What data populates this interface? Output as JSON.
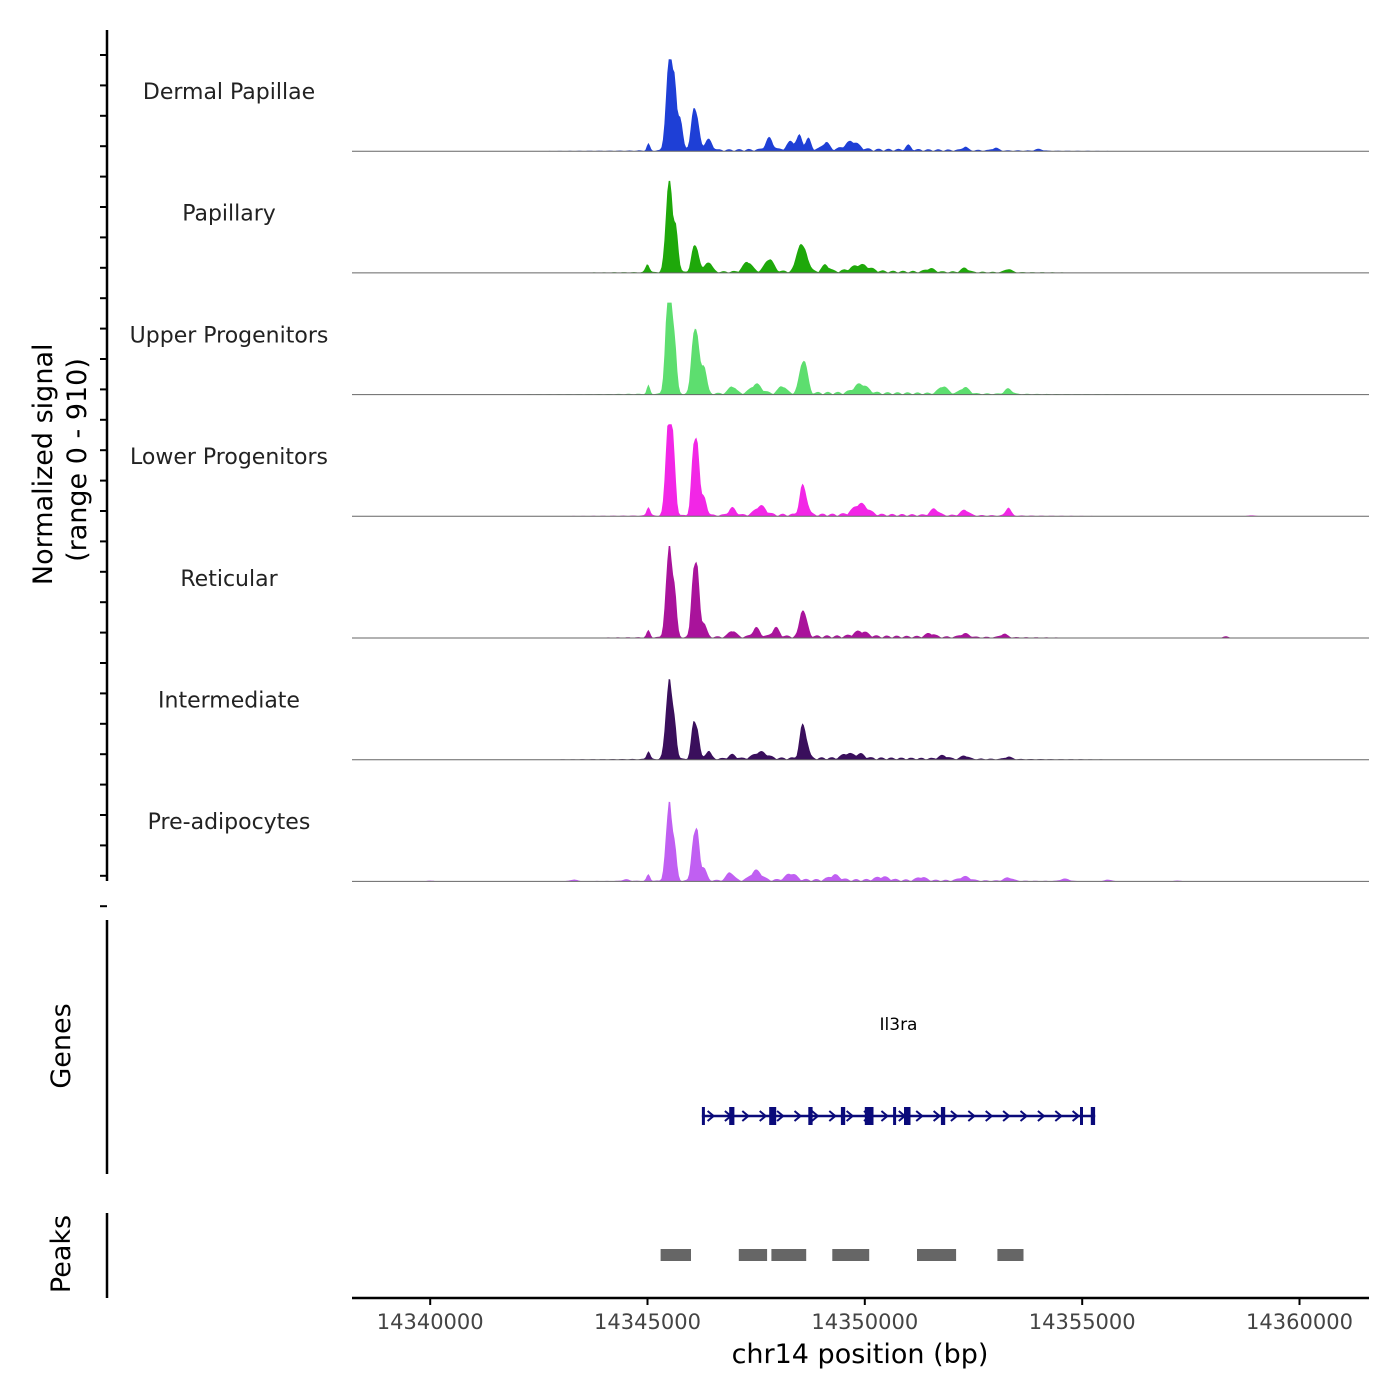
{
  "chart_data": {
    "type": "area",
    "title": "",
    "chromosome": "chr14",
    "xlabel": "chr14 position (bp)",
    "xlim": [
      14338200,
      14361600
    ],
    "xticks": [
      14340000,
      14345000,
      14350000,
      14355000,
      14360000
    ],
    "xtick_labels": [
      "14340000",
      "14345000",
      "14350000",
      "14355000",
      "14360000"
    ],
    "signal_axis": {
      "label_line1": "Normalized signal",
      "label_line2": "(range 0 - 910)",
      "ylim": [
        0,
        910
      ]
    },
    "tracks": [
      {
        "name": "Dermal Papillae",
        "color": "#1e3fd6",
        "scale": 1.0,
        "peaks": [
          [
            14345020,
            0.08,
            35
          ],
          [
            14345450,
            0.55,
            55
          ],
          [
            14345520,
            0.85,
            45
          ],
          [
            14345620,
            0.75,
            45
          ],
          [
            14345750,
            0.35,
            60
          ],
          [
            14346050,
            0.4,
            55
          ],
          [
            14346150,
            0.28,
            55
          ],
          [
            14346400,
            0.12,
            80
          ],
          [
            14347800,
            0.13,
            80
          ],
          [
            14348300,
            0.09,
            90
          ],
          [
            14348500,
            0.15,
            60
          ],
          [
            14348700,
            0.12,
            60
          ],
          [
            14349100,
            0.08,
            80
          ],
          [
            14349700,
            0.09,
            150
          ],
          [
            14351000,
            0.05,
            60
          ],
          [
            14352300,
            0.04,
            60
          ],
          [
            14353000,
            0.03,
            70
          ],
          [
            14354000,
            0.02,
            80
          ]
        ]
      },
      {
        "name": "Papillary",
        "color": "#1ea80a",
        "scale": 0.92,
        "peaks": [
          [
            14345000,
            0.1,
            45
          ],
          [
            14345450,
            0.6,
            60
          ],
          [
            14345520,
            0.85,
            50
          ],
          [
            14345650,
            0.55,
            55
          ],
          [
            14346050,
            0.25,
            55
          ],
          [
            14346150,
            0.22,
            55
          ],
          [
            14346400,
            0.12,
            80
          ],
          [
            14347300,
            0.12,
            100
          ],
          [
            14347800,
            0.15,
            100
          ],
          [
            14348500,
            0.3,
            80
          ],
          [
            14348650,
            0.18,
            70
          ],
          [
            14349100,
            0.08,
            80
          ],
          [
            14349900,
            0.08,
            200
          ],
          [
            14351500,
            0.04,
            100
          ],
          [
            14352300,
            0.05,
            80
          ],
          [
            14353300,
            0.04,
            80
          ]
        ]
      },
      {
        "name": "Upper Progenitors",
        "color": "#5dde6f",
        "scale": 1.0,
        "peaks": [
          [
            14345020,
            0.1,
            35
          ],
          [
            14345450,
            0.8,
            55
          ],
          [
            14345520,
            0.95,
            45
          ],
          [
            14345620,
            0.6,
            50
          ],
          [
            14346050,
            0.55,
            55
          ],
          [
            14346150,
            0.52,
            55
          ],
          [
            14346300,
            0.3,
            60
          ],
          [
            14346950,
            0.08,
            80
          ],
          [
            14347500,
            0.1,
            120
          ],
          [
            14348100,
            0.08,
            80
          ],
          [
            14348550,
            0.28,
            70
          ],
          [
            14348650,
            0.2,
            60
          ],
          [
            14349900,
            0.1,
            150
          ],
          [
            14351800,
            0.08,
            100
          ],
          [
            14352300,
            0.07,
            100
          ],
          [
            14353300,
            0.06,
            80
          ]
        ]
      },
      {
        "name": "Lower Progenitors",
        "color": "#f226e6",
        "scale": 1.0,
        "peaks": [
          [
            14345020,
            0.1,
            40
          ],
          [
            14345450,
            0.7,
            55
          ],
          [
            14345520,
            0.8,
            45
          ],
          [
            14345600,
            0.65,
            50
          ],
          [
            14346050,
            0.65,
            50
          ],
          [
            14346150,
            0.72,
            50
          ],
          [
            14346300,
            0.2,
            60
          ],
          [
            14346950,
            0.08,
            80
          ],
          [
            14347600,
            0.1,
            120
          ],
          [
            14348550,
            0.28,
            60
          ],
          [
            14348650,
            0.15,
            60
          ],
          [
            14349900,
            0.12,
            160
          ],
          [
            14351600,
            0.07,
            90
          ],
          [
            14352300,
            0.06,
            90
          ],
          [
            14353300,
            0.09,
            60
          ],
          [
            14358900,
            0.01,
            100
          ]
        ]
      },
      {
        "name": "Reticular",
        "color": "#a9139b",
        "scale": 0.98,
        "peaks": [
          [
            14345020,
            0.08,
            40
          ],
          [
            14345450,
            0.6,
            55
          ],
          [
            14345520,
            0.7,
            45
          ],
          [
            14345620,
            0.55,
            50
          ],
          [
            14346050,
            0.65,
            50
          ],
          [
            14346150,
            0.7,
            50
          ],
          [
            14346300,
            0.15,
            60
          ],
          [
            14346950,
            0.07,
            80
          ],
          [
            14347500,
            0.1,
            80
          ],
          [
            14347950,
            0.1,
            80
          ],
          [
            14348550,
            0.26,
            60
          ],
          [
            14348650,
            0.14,
            60
          ],
          [
            14349900,
            0.06,
            150
          ],
          [
            14351500,
            0.04,
            100
          ],
          [
            14352300,
            0.04,
            100
          ],
          [
            14353200,
            0.04,
            80
          ],
          [
            14358300,
            0.02,
            60
          ]
        ]
      },
      {
        "name": "Intermediate",
        "color": "#3a0f5c",
        "scale": 0.9,
        "peaks": [
          [
            14345020,
            0.1,
            40
          ],
          [
            14345450,
            0.55,
            60
          ],
          [
            14345520,
            0.62,
            50
          ],
          [
            14345620,
            0.45,
            50
          ],
          [
            14346050,
            0.4,
            50
          ],
          [
            14346150,
            0.32,
            50
          ],
          [
            14346400,
            0.1,
            60
          ],
          [
            14346950,
            0.05,
            80
          ],
          [
            14347600,
            0.08,
            150
          ],
          [
            14348550,
            0.35,
            60
          ],
          [
            14348650,
            0.2,
            60
          ],
          [
            14349600,
            0.06,
            120
          ],
          [
            14349900,
            0.05,
            100
          ],
          [
            14351800,
            0.04,
            100
          ],
          [
            14352300,
            0.04,
            80
          ],
          [
            14353300,
            0.03,
            80
          ]
        ]
      },
      {
        "name": "Pre-adipocytes",
        "color": "#c05ff2",
        "scale": 0.9,
        "peaks": [
          [
            14340000,
            0.01,
            80
          ],
          [
            14343300,
            0.02,
            80
          ],
          [
            14344500,
            0.02,
            80
          ],
          [
            14345020,
            0.08,
            40
          ],
          [
            14345450,
            0.55,
            55
          ],
          [
            14345520,
            0.65,
            45
          ],
          [
            14345620,
            0.45,
            50
          ],
          [
            14346050,
            0.45,
            50
          ],
          [
            14346150,
            0.55,
            50
          ],
          [
            14346300,
            0.15,
            60
          ],
          [
            14346900,
            0.1,
            80
          ],
          [
            14347500,
            0.12,
            120
          ],
          [
            14348300,
            0.08,
            120
          ],
          [
            14349300,
            0.06,
            120
          ],
          [
            14350400,
            0.04,
            150
          ],
          [
            14351300,
            0.04,
            100
          ],
          [
            14352300,
            0.05,
            120
          ],
          [
            14353300,
            0.04,
            100
          ],
          [
            14354600,
            0.03,
            100
          ],
          [
            14355600,
            0.02,
            80
          ],
          [
            14357200,
            0.01,
            80
          ]
        ]
      }
    ],
    "genes_track": {
      "label": "Genes",
      "gene_name": "Il3ra",
      "strand": "+",
      "start": 14346250,
      "end": 14355300,
      "exons": [
        [
          14346250,
          14346290
        ],
        [
          14346880,
          14347000
        ],
        [
          14347800,
          14347960
        ],
        [
          14348700,
          14348800
        ],
        [
          14349450,
          14349550
        ],
        [
          14350000,
          14350200
        ],
        [
          14350650,
          14350720
        ],
        [
          14350900,
          14351050
        ],
        [
          14351750,
          14351850
        ],
        [
          14354950,
          14355000
        ],
        [
          14355200,
          14355300
        ]
      ]
    },
    "peaks_track": {
      "label": "Peaks",
      "regions": [
        [
          14345300,
          14346000
        ],
        [
          14347100,
          14347750
        ],
        [
          14347850,
          14348650
        ],
        [
          14349250,
          14350100
        ],
        [
          14351200,
          14352100
        ],
        [
          14353050,
          14353650
        ]
      ]
    }
  }
}
